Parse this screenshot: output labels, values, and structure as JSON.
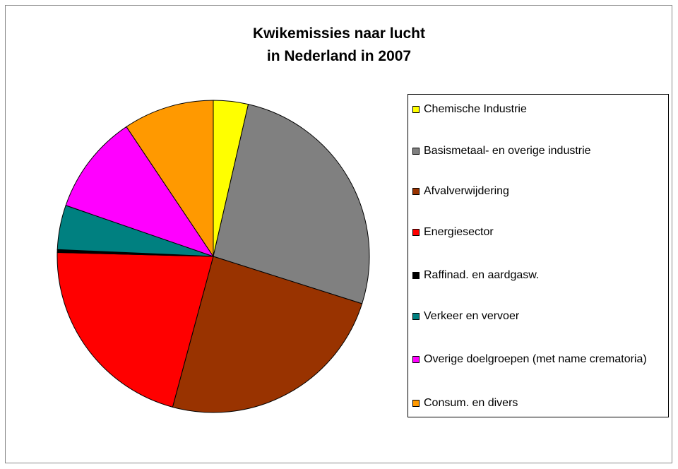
{
  "chart_data": {
    "type": "pie",
    "title": "Kwikemissies naar lucht\nin Nederland in 2007",
    "categories": [
      "Chemische Industrie",
      "Basismetaal- en overige industrie",
      "Afvalverwijdering",
      "Energiesector",
      "Raffinad. en aardgasw.",
      "Verkeer en vervoer",
      "Overige doelgroepen (met name crematoria)",
      "Consum. en divers"
    ],
    "values": [
      3.6,
      26.3,
      24.3,
      21.2,
      0.3,
      4.6,
      10.3,
      9.4
    ],
    "colors": [
      "#ffff00",
      "#808080",
      "#993300",
      "#ff0000",
      "#000000",
      "#008080",
      "#ff00ff",
      "#ff9900"
    ],
    "legend": "right"
  }
}
